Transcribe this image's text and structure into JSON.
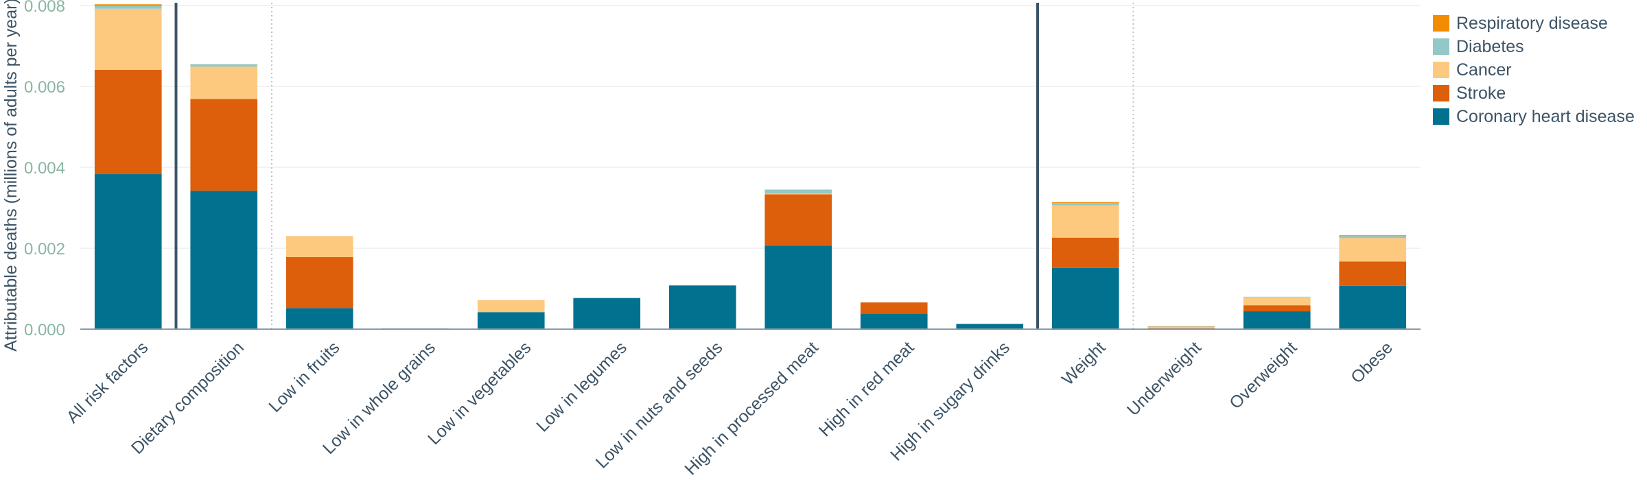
{
  "chart_data": {
    "type": "bar",
    "stacked": true,
    "ylabel": "Attributable deaths (millions of adults per year)",
    "ylim": [
      0,
      0.008
    ],
    "yticks": [
      "0.000",
      "0.002",
      "0.004",
      "0.006",
      "0.008"
    ],
    "ytick_values": [
      0,
      0.002,
      0.004,
      0.006,
      0.008
    ],
    "grid": true,
    "legend_position": "top-right",
    "categories": [
      "All risk factors",
      "Dietary composition",
      "Low in fruits",
      "Low in whole grains",
      "Low in vegetables",
      "Low in legumes",
      "Low in nuts and seeds",
      "High in processed meat",
      "High in red meat",
      "High in sugary drinks",
      "Weight",
      "Underweight",
      "Overweight",
      "Obese"
    ],
    "separators": [
      {
        "after_index": 0,
        "style": "solid"
      },
      {
        "after_index": 1,
        "style": "dotted"
      },
      {
        "after_index": 9,
        "style": "solid"
      },
      {
        "after_index": 10,
        "style": "dotted"
      }
    ],
    "series": [
      {
        "name": "Coronary heart disease",
        "color": "#00718f",
        "values": [
          0.00383,
          0.00342,
          0.00052,
          2e-05,
          0.00042,
          0.00077,
          0.00108,
          0.00206,
          0.00038,
          0.00013,
          0.00151,
          2e-05,
          0.00044,
          0.00107
        ]
      },
      {
        "name": "Stroke",
        "color": "#dd5e0b",
        "values": [
          0.00258,
          0.00227,
          0.00126,
          0,
          0,
          0,
          0,
          0.00127,
          0.00028,
          0,
          0.00075,
          1e-05,
          0.00015,
          0.0006
        ]
      },
      {
        "name": "Cancer",
        "color": "#fcc97f",
        "values": [
          0.00151,
          0.0008,
          0.00052,
          0,
          0.0003,
          0,
          0,
          2e-05,
          0,
          0,
          0.0008,
          2e-05,
          0.0002,
          0.00058
        ]
      },
      {
        "name": "Diabetes",
        "color": "#93c8c8",
        "values": [
          7e-05,
          6e-05,
          0,
          0,
          0,
          0,
          0,
          0.0001,
          0,
          0,
          6e-05,
          1e-05,
          1e-05,
          5e-05
        ]
      },
      {
        "name": "Respiratory disease",
        "color": "#f28c00",
        "values": [
          4e-05,
          0,
          0,
          0,
          0,
          0,
          0,
          0,
          0,
          0,
          2e-05,
          1e-05,
          0,
          2e-05
        ]
      }
    ],
    "legend_order": [
      "Respiratory disease",
      "Diabetes",
      "Cancer",
      "Stroke",
      "Coronary heart disease"
    ]
  }
}
